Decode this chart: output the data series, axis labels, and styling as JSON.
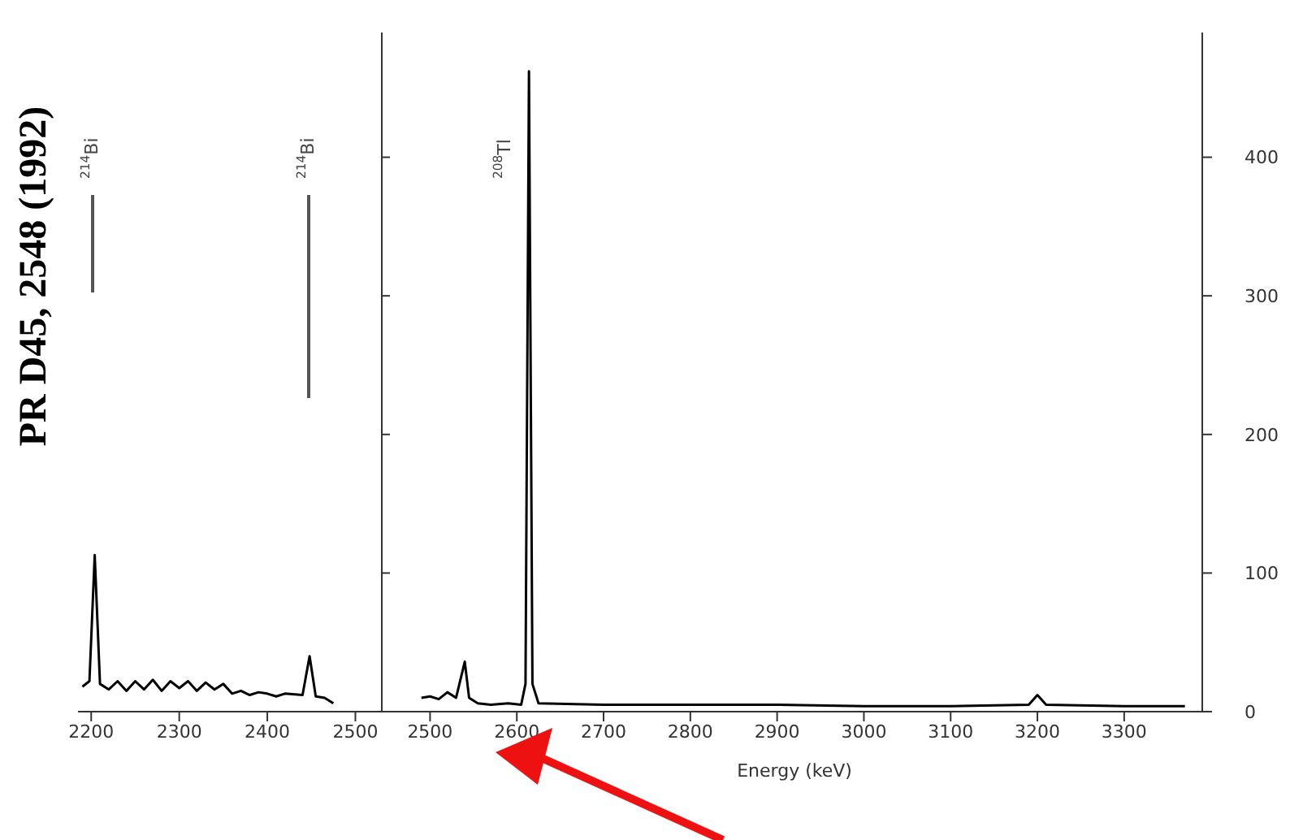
{
  "chart_data": [
    {
      "type": "line",
      "x": [
        2190,
        2198,
        2204,
        2210,
        2220,
        2230,
        2240,
        2250,
        2260,
        2270,
        2280,
        2290,
        2300,
        2310,
        2320,
        2330,
        2340,
        2350,
        2360,
        2370,
        2380,
        2390,
        2400,
        2410,
        2420,
        2440,
        2448,
        2455,
        2465,
        2475
      ],
      "values": [
        18,
        22,
        113,
        20,
        16,
        22,
        15,
        22,
        16,
        23,
        15,
        22,
        17,
        22,
        15,
        21,
        16,
        20,
        13,
        15,
        12,
        14,
        13,
        11,
        13,
        12,
        40,
        11,
        10,
        6
      ],
      "color": "#000000",
      "xlim": [
        2185,
        2530
      ],
      "xticks": [
        2200,
        2300,
        2400,
        2500
      ],
      "ylim": [
        0,
        490
      ],
      "yticks": [
        0,
        100,
        200,
        300,
        400
      ],
      "tick_labels": "x",
      "annotations": [
        "$^{214}$Bi",
        "$^{214}$Bi",
        "PR D45, 2548 (1992)"
      ]
    },
    {
      "type": "line",
      "xlabel": "Energy (keV)",
      "x": [
        2490,
        2500,
        2510,
        2520,
        2530,
        2540,
        2545,
        2555,
        2570,
        2590,
        2605,
        2610,
        2614,
        2618,
        2625,
        2700,
        2800,
        2900,
        3000,
        3100,
        3190,
        3200,
        3210,
        3300,
        3370
      ],
      "values": [
        10,
        11,
        9,
        14,
        10,
        36,
        10,
        6,
        5,
        6,
        5,
        20,
        462,
        20,
        6,
        5,
        5,
        5,
        4,
        4,
        5,
        12,
        5,
        4,
        4
      ],
      "color": "#000000",
      "xlim": [
        2450,
        3390
      ],
      "xticks": [
        2500,
        2600,
        2700,
        2800,
        2900,
        3000,
        3100,
        3200,
        3300
      ],
      "ylim": [
        0,
        490
      ],
      "yticks": [
        0,
        100,
        200,
        300,
        400
      ],
      "annotations": [
        "$^{208}$Tl"
      ]
    }
  ]
}
